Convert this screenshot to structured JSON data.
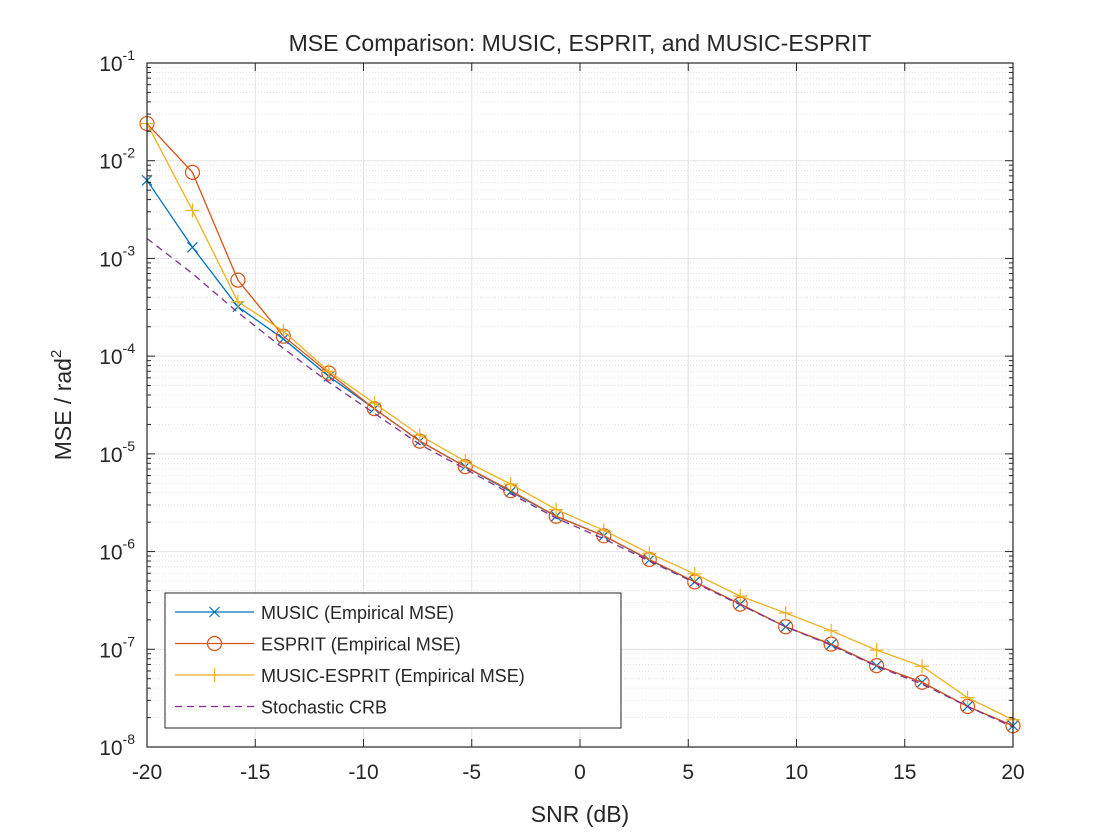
{
  "chart_data": {
    "type": "line",
    "title": "MSE Comparison: MUSIC, ESPRIT, and MUSIC-ESPRIT",
    "xlabel": "SNR (dB)",
    "ylabel_base": "MSE / rad",
    "ylabel_sup": "2",
    "xlim": [
      -20,
      20
    ],
    "ylim": [
      1e-08,
      0.1
    ],
    "yscale": "log",
    "grid": true,
    "minor_grid": true,
    "legend_position": "bottom-left",
    "xticks": [
      -20,
      -15,
      -10,
      -5,
      0,
      5,
      10,
      15,
      20
    ],
    "xtick_labels": [
      "-20",
      "-15",
      "-10",
      "-5",
      "0",
      "5",
      "10",
      "15",
      "20"
    ],
    "yticks": [
      {
        "value": 1e-08,
        "base": "10",
        "exp": "-8"
      },
      {
        "value": 1e-07,
        "base": "10",
        "exp": "-7"
      },
      {
        "value": 1e-06,
        "base": "10",
        "exp": "-6"
      },
      {
        "value": 1e-05,
        "base": "10",
        "exp": "-5"
      },
      {
        "value": 0.0001,
        "base": "10",
        "exp": "-4"
      },
      {
        "value": 0.001,
        "base": "10",
        "exp": "-3"
      },
      {
        "value": 0.01,
        "base": "10",
        "exp": "-2"
      },
      {
        "value": 0.1,
        "base": "10",
        "exp": "-1"
      }
    ],
    "x": [
      -20,
      -17.9,
      -15.8,
      -13.7,
      -11.6,
      -9.5,
      -7.4,
      -5.3,
      -3.2,
      -1.1,
      1.1,
      3.2,
      5.3,
      7.4,
      9.5,
      11.6,
      13.7,
      15.8,
      17.9,
      20
    ],
    "series": [
      {
        "name": "MUSIC (Empirical MSE)",
        "color": "#0072BD",
        "marker": "x",
        "dashed": false,
        "values": [
          0.0063,
          0.0013,
          0.00032,
          0.00015,
          6.2e-05,
          2.9e-05,
          1.35e-05,
          7.4e-06,
          4.1e-06,
          2.3e-06,
          1.45e-06,
          8.2e-07,
          4.9e-07,
          2.9e-07,
          1.7e-07,
          1.12e-07,
          6.8e-08,
          4.6e-08,
          2.6e-08,
          1.65e-08
        ]
      },
      {
        "name": "ESPRIT (Empirical MSE)",
        "color": "#D95319",
        "marker": "o",
        "dashed": false,
        "values": [
          0.024,
          0.0076,
          0.0006,
          0.00016,
          6.7e-05,
          2.9e-05,
          1.35e-05,
          7.4e-06,
          4.2e-06,
          2.3e-06,
          1.45e-06,
          8.3e-07,
          4.9e-07,
          2.9e-07,
          1.7e-07,
          1.13e-07,
          6.8e-08,
          4.6e-08,
          2.6e-08,
          1.65e-08
        ]
      },
      {
        "name": "MUSIC-ESPRIT (Empirical MSE)",
        "color": "#EDB120",
        "marker": "+",
        "dashed": false,
        "values": [
          0.024,
          0.0031,
          0.00036,
          0.00018,
          7e-05,
          3.3e-05,
          1.55e-05,
          8.4e-06,
          4.9e-06,
          2.7e-06,
          1.65e-06,
          9.6e-07,
          5.9e-07,
          3.5e-07,
          2.35e-07,
          1.55e-07,
          9.8e-08,
          6.7e-08,
          3.2e-08,
          1.9e-08
        ]
      },
      {
        "name": "Stochastic CRB",
        "color": "#7E2F8E",
        "marker": "none",
        "dashed": true,
        "values": [
          0.0016,
          0.0007,
          0.00028,
          0.00012,
          5.4e-05,
          2.6e-05,
          1.25e-05,
          7e-06,
          3.9e-06,
          2.2e-06,
          1.35e-06,
          8e-07,
          4.8e-07,
          2.85e-07,
          1.7e-07,
          1.1e-07,
          6.7e-08,
          4.4e-08,
          2.6e-08,
          1.6e-08
        ]
      }
    ]
  }
}
